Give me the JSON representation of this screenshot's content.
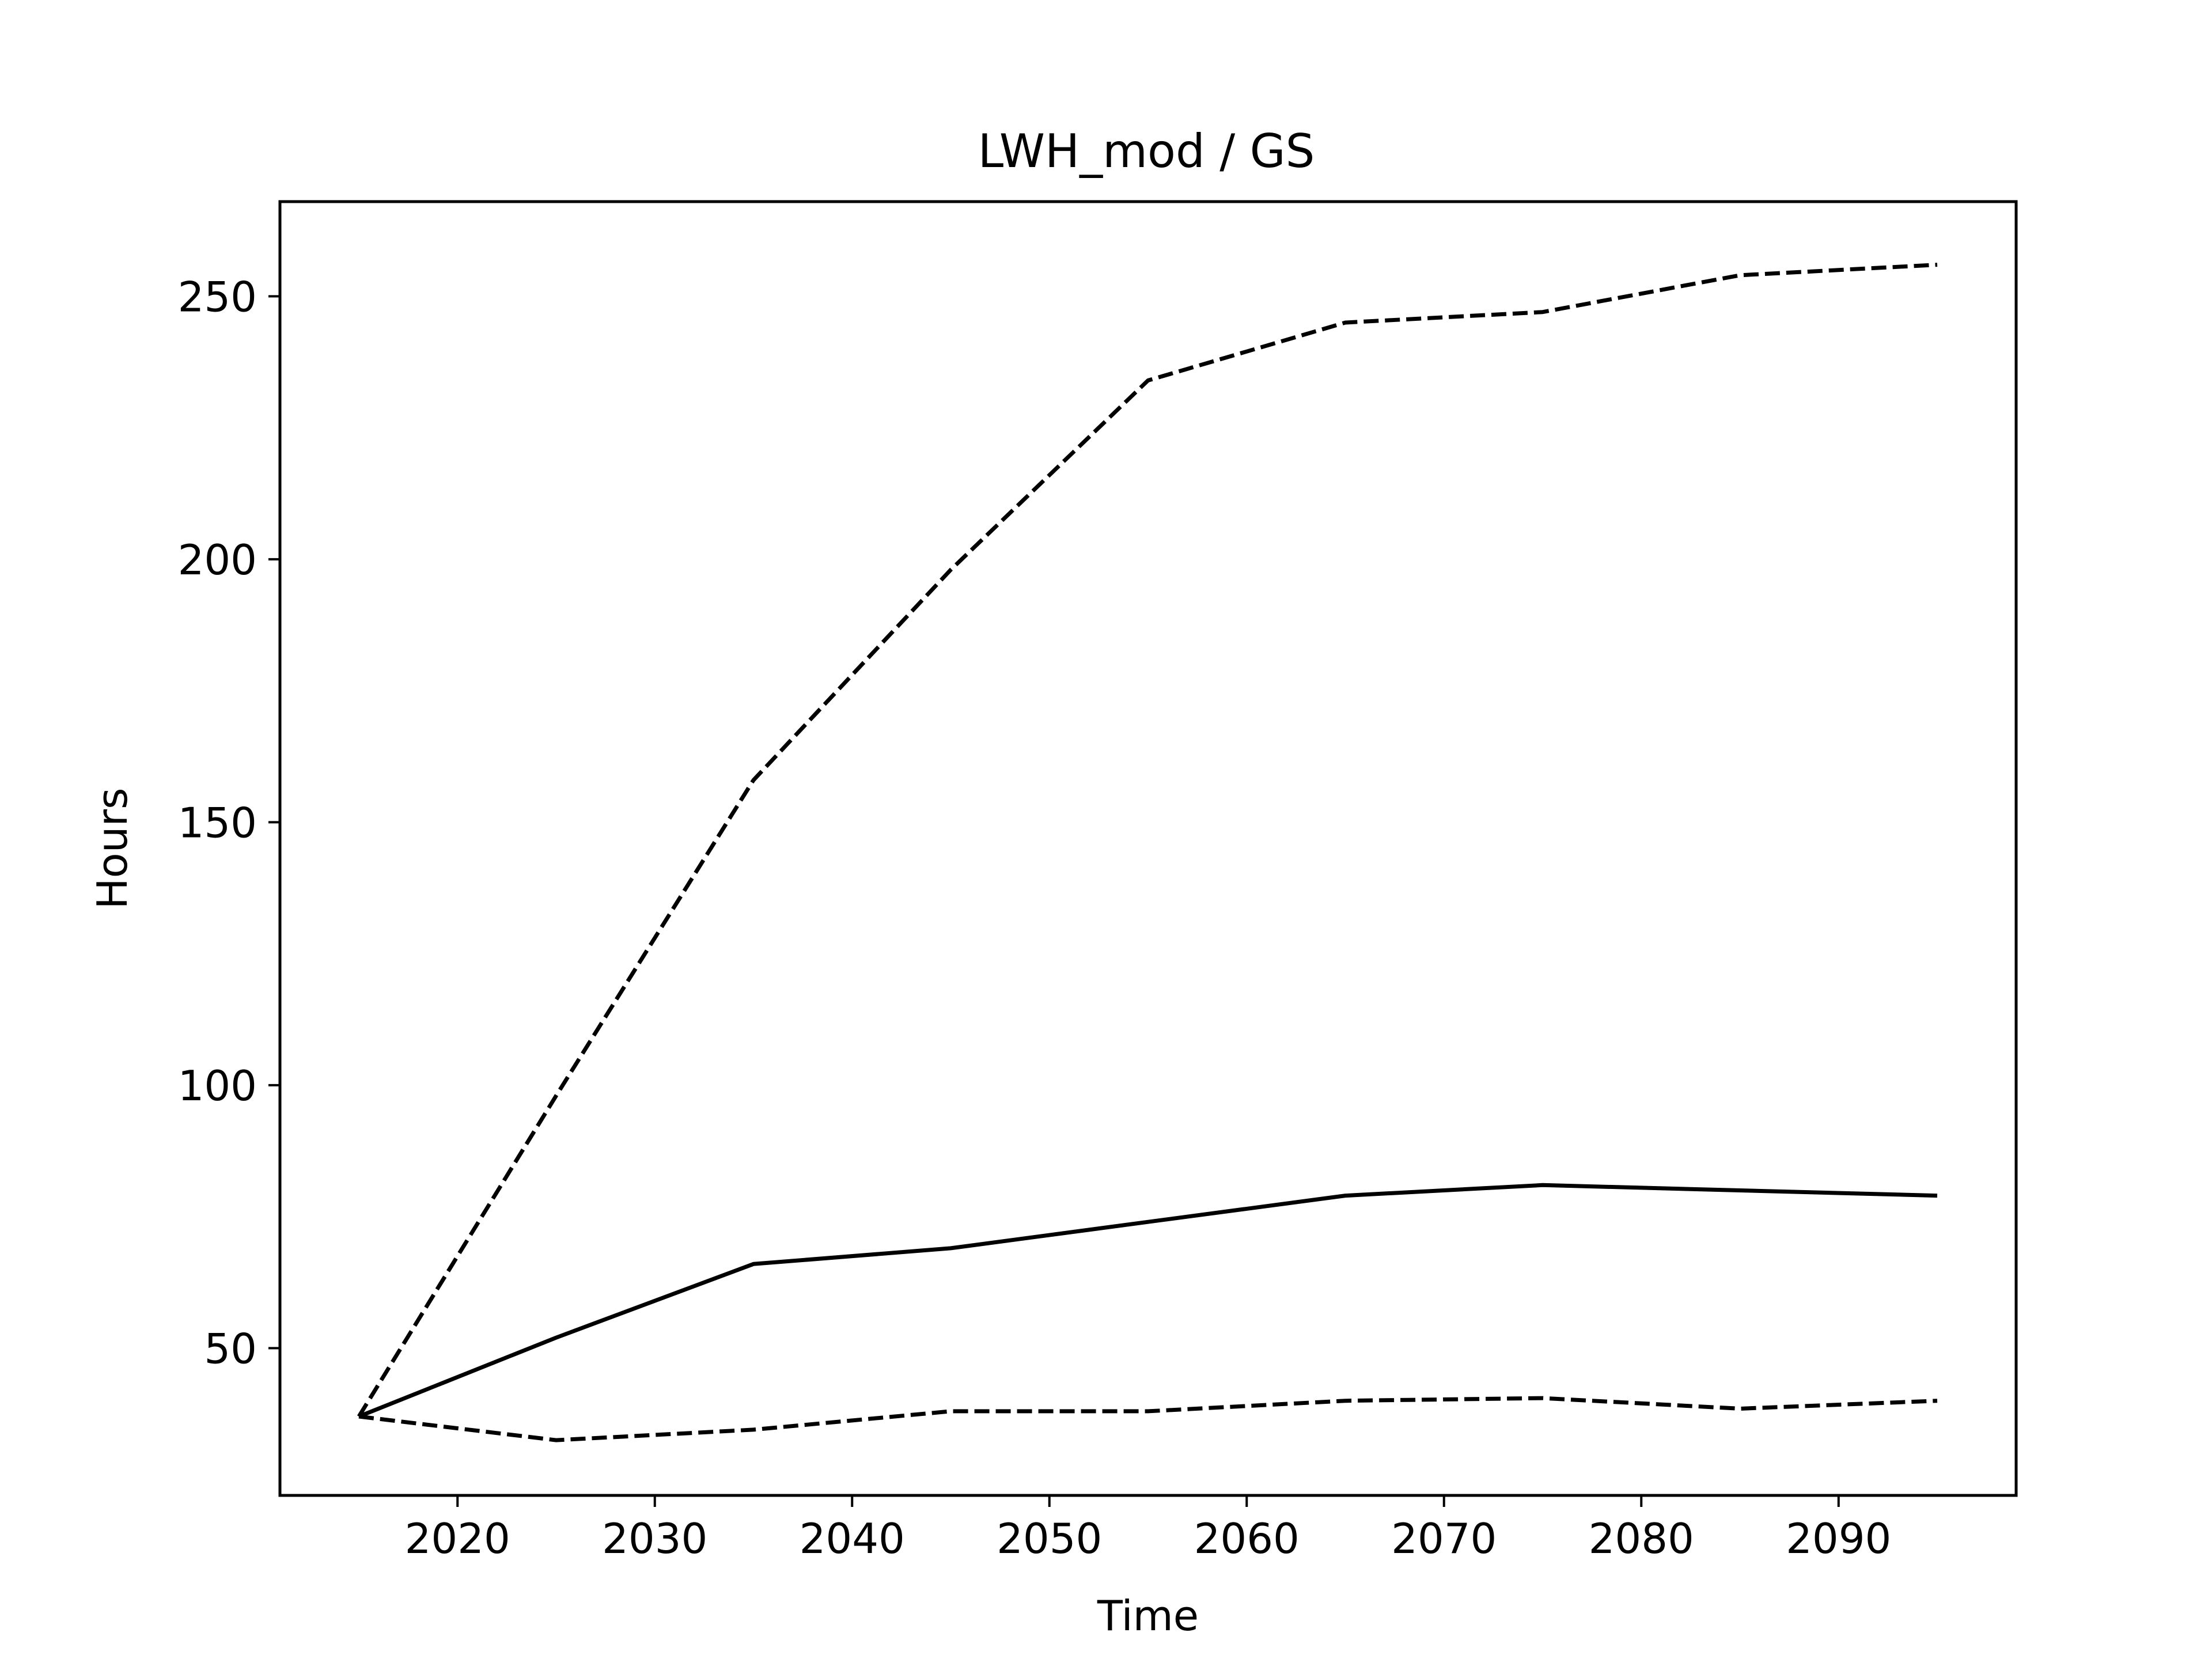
{
  "chart_data": {
    "type": "line",
    "title": "LWH_mod / GS",
    "xlabel": "Time",
    "ylabel": "Hours",
    "xlim": [
      2011,
      2099
    ],
    "ylim": [
      22,
      268
    ],
    "xticks": [
      2020,
      2030,
      2040,
      2050,
      2060,
      2070,
      2080,
      2090
    ],
    "yticks": [
      50,
      100,
      150,
      200,
      250
    ],
    "grid": false,
    "legend": "none",
    "x": [
      2015,
      2025,
      2035,
      2045,
      2055,
      2065,
      2075,
      2085,
      2095
    ],
    "series": [
      {
        "style": "dashed",
        "color": "#000000",
        "values": [
          37,
          98,
          158,
          198,
          234,
          245,
          247,
          254,
          256
        ]
      },
      {
        "style": "solid",
        "color": "#000000",
        "values": [
          37,
          52,
          66,
          69,
          74,
          79,
          81,
          80,
          79
        ]
      },
      {
        "style": "dashed",
        "color": "#000000",
        "values": [
          37,
          32.5,
          34.5,
          38,
          38,
          40,
          40.5,
          38.5,
          40
        ]
      }
    ]
  }
}
